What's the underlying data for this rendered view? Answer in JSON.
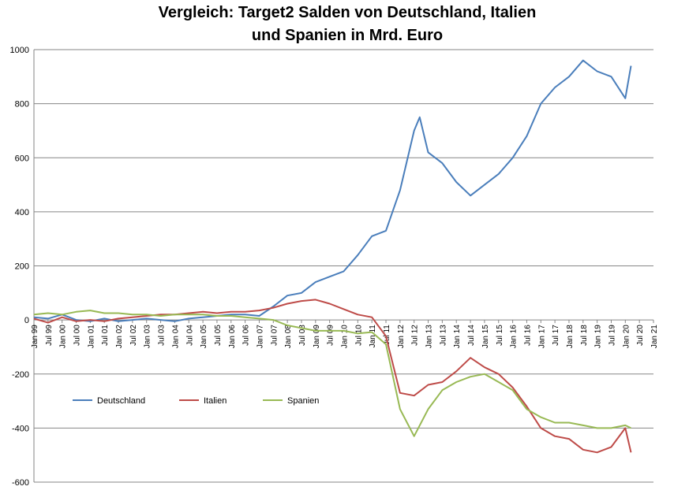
{
  "chart_data": {
    "type": "line",
    "title_line1": "Vergleich: Target2 Salden von Deutschland, Italien",
    "title_line2": "und Spanien in Mrd. Euro",
    "xlabel": "",
    "ylabel": "",
    "ylim": [
      -600,
      1000
    ],
    "yticks": [
      -600,
      -400,
      -200,
      0,
      200,
      400,
      600,
      800,
      1000
    ],
    "xlim": [
      1999.0,
      2021.0
    ],
    "xtick_labels": [
      "Jan 99",
      "Jul 99",
      "Jan 00",
      "Jul 00",
      "Jan 01",
      "Jul 01",
      "Jan 02",
      "Jul 02",
      "Jan 03",
      "Jul 03",
      "Jan 04",
      "Jul 04",
      "Jan 05",
      "Jul 05",
      "Jan 06",
      "Jul 06",
      "Jan 07",
      "Jul 07",
      "Jan 08",
      "Jul 08",
      "Jan 09",
      "Jul 09",
      "Jan 10",
      "Jul 10",
      "Jan 11",
      "Jul 11",
      "Jan 12",
      "Jul 12",
      "Jan 13",
      "Jul 13",
      "Jan 14",
      "Jul 14",
      "Jan 15",
      "Jul 15",
      "Jan 16",
      "Jul 16",
      "Jan 17",
      "Jul 17",
      "Jan 18",
      "Jul 18",
      "Jan 19",
      "Jul 19",
      "Jan 20",
      "Jul 20",
      "Jan 21"
    ],
    "grid": "horizontal",
    "legend_position": "lower-left inside",
    "colors": {
      "Deutschland": "#4a7ebb",
      "Italien": "#be4b48",
      "Spanien": "#98b954"
    },
    "series": [
      {
        "name": "Deutschland",
        "points": [
          [
            1999.0,
            10
          ],
          [
            1999.5,
            5
          ],
          [
            2000.0,
            20
          ],
          [
            2000.5,
            0
          ],
          [
            2001.0,
            -5
          ],
          [
            2001.5,
            5
          ],
          [
            2002.0,
            -5
          ],
          [
            2002.5,
            0
          ],
          [
            2003.0,
            5
          ],
          [
            2003.5,
            0
          ],
          [
            2004.0,
            -5
          ],
          [
            2004.5,
            5
          ],
          [
            2005.0,
            10
          ],
          [
            2005.5,
            15
          ],
          [
            2006.0,
            20
          ],
          [
            2006.5,
            20
          ],
          [
            2007.0,
            15
          ],
          [
            2007.5,
            50
          ],
          [
            2008.0,
            90
          ],
          [
            2008.5,
            100
          ],
          [
            2009.0,
            140
          ],
          [
            2009.5,
            160
          ],
          [
            2010.0,
            180
          ],
          [
            2010.5,
            240
          ],
          [
            2011.0,
            310
          ],
          [
            2011.5,
            330
          ],
          [
            2012.0,
            480
          ],
          [
            2012.5,
            700
          ],
          [
            2012.7,
            750
          ],
          [
            2013.0,
            620
          ],
          [
            2013.5,
            580
          ],
          [
            2014.0,
            510
          ],
          [
            2014.5,
            460
          ],
          [
            2015.0,
            500
          ],
          [
            2015.5,
            540
          ],
          [
            2016.0,
            600
          ],
          [
            2016.5,
            680
          ],
          [
            2017.0,
            800
          ],
          [
            2017.5,
            860
          ],
          [
            2018.0,
            900
          ],
          [
            2018.5,
            960
          ],
          [
            2019.0,
            920
          ],
          [
            2019.5,
            900
          ],
          [
            2020.0,
            820
          ],
          [
            2020.2,
            940
          ]
        ]
      },
      {
        "name": "Italien",
        "points": [
          [
            1999.0,
            5
          ],
          [
            1999.5,
            -10
          ],
          [
            2000.0,
            10
          ],
          [
            2000.5,
            -5
          ],
          [
            2001.0,
            0
          ],
          [
            2001.5,
            -5
          ],
          [
            2002.0,
            5
          ],
          [
            2002.5,
            10
          ],
          [
            2003.0,
            15
          ],
          [
            2003.5,
            20
          ],
          [
            2004.0,
            20
          ],
          [
            2004.5,
            25
          ],
          [
            2005.0,
            30
          ],
          [
            2005.5,
            25
          ],
          [
            2006.0,
            30
          ],
          [
            2006.5,
            30
          ],
          [
            2007.0,
            35
          ],
          [
            2007.5,
            45
          ],
          [
            2008.0,
            60
          ],
          [
            2008.5,
            70
          ],
          [
            2009.0,
            75
          ],
          [
            2009.5,
            60
          ],
          [
            2010.0,
            40
          ],
          [
            2010.5,
            20
          ],
          [
            2011.0,
            10
          ],
          [
            2011.5,
            -60
          ],
          [
            2012.0,
            -270
          ],
          [
            2012.5,
            -280
          ],
          [
            2013.0,
            -240
          ],
          [
            2013.5,
            -230
          ],
          [
            2014.0,
            -190
          ],
          [
            2014.5,
            -140
          ],
          [
            2015.0,
            -175
          ],
          [
            2015.5,
            -200
          ],
          [
            2016.0,
            -250
          ],
          [
            2016.5,
            -320
          ],
          [
            2017.0,
            -400
          ],
          [
            2017.5,
            -430
          ],
          [
            2018.0,
            -440
          ],
          [
            2018.5,
            -480
          ],
          [
            2019.0,
            -490
          ],
          [
            2019.5,
            -470
          ],
          [
            2020.0,
            -400
          ],
          [
            2020.2,
            -490
          ]
        ]
      },
      {
        "name": "Spanien",
        "points": [
          [
            1999.0,
            20
          ],
          [
            1999.5,
            25
          ],
          [
            2000.0,
            20
          ],
          [
            2000.5,
            30
          ],
          [
            2001.0,
            35
          ],
          [
            2001.5,
            25
          ],
          [
            2002.0,
            25
          ],
          [
            2002.5,
            20
          ],
          [
            2003.0,
            20
          ],
          [
            2003.5,
            15
          ],
          [
            2004.0,
            20
          ],
          [
            2004.5,
            20
          ],
          [
            2005.0,
            20
          ],
          [
            2005.5,
            15
          ],
          [
            2006.0,
            15
          ],
          [
            2006.5,
            10
          ],
          [
            2007.0,
            5
          ],
          [
            2007.5,
            0
          ],
          [
            2008.0,
            -20
          ],
          [
            2008.5,
            -30
          ],
          [
            2009.0,
            -40
          ],
          [
            2009.5,
            -40
          ],
          [
            2010.0,
            -40
          ],
          [
            2010.5,
            -50
          ],
          [
            2011.0,
            -45
          ],
          [
            2011.5,
            -90
          ],
          [
            2012.0,
            -330
          ],
          [
            2012.5,
            -430
          ],
          [
            2013.0,
            -330
          ],
          [
            2013.5,
            -260
          ],
          [
            2014.0,
            -230
          ],
          [
            2014.5,
            -210
          ],
          [
            2015.0,
            -200
          ],
          [
            2015.5,
            -230
          ],
          [
            2016.0,
            -260
          ],
          [
            2016.5,
            -330
          ],
          [
            2017.0,
            -360
          ],
          [
            2017.5,
            -380
          ],
          [
            2018.0,
            -380
          ],
          [
            2018.5,
            -390
          ],
          [
            2019.0,
            -400
          ],
          [
            2019.5,
            -400
          ],
          [
            2020.0,
            -390
          ],
          [
            2020.2,
            -400
          ]
        ]
      }
    ]
  }
}
